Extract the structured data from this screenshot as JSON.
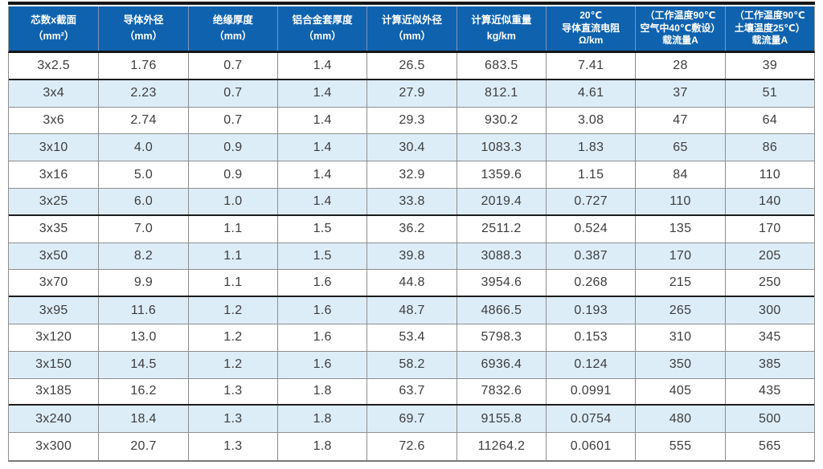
{
  "table": {
    "columns": [
      {
        "id": "cores-section",
        "label_lines": [
          "芯数x截面",
          "（mm²）"
        ]
      },
      {
        "id": "conductor-od",
        "label_lines": [
          "导体外径",
          "（mm）"
        ]
      },
      {
        "id": "insulation-thickness",
        "label_lines": [
          "绝缘厚度",
          "（mm）"
        ]
      },
      {
        "id": "alloy-sheath-thickness",
        "label_lines": [
          "铝合金套厚度",
          "（mm）"
        ]
      },
      {
        "id": "calc-approx-od",
        "label_lines": [
          "计算近似外径",
          "（mm）"
        ]
      },
      {
        "id": "calc-approx-weight",
        "label_lines": [
          "计算近似重量",
          "kg/km"
        ]
      },
      {
        "id": "dc-resistance-20c",
        "label_lines": [
          "20℃",
          "导体直流电阻",
          "Ω/km"
        ]
      },
      {
        "id": "ampacity-air",
        "label_lines": [
          "（工作温度90℃",
          "空气中40℃敷设）",
          "载流量A"
        ]
      },
      {
        "id": "ampacity-soil",
        "label_lines": [
          "（工作温度90℃",
          "土壤温度25℃）",
          "载流量A"
        ]
      }
    ],
    "rows": [
      {
        "cells": [
          "3x2.5",
          "1.76",
          "0.7",
          "1.4",
          "26.5",
          "683.5",
          "7.41",
          "28",
          "39"
        ],
        "thick_bottom": true
      },
      {
        "cells": [
          "3x4",
          "2.23",
          "0.7",
          "1.4",
          "27.9",
          "812.1",
          "4.61",
          "37",
          "51"
        ],
        "thick_bottom": false
      },
      {
        "cells": [
          "3x6",
          "2.74",
          "0.7",
          "1.4",
          "29.3",
          "930.2",
          "3.08",
          "47",
          "64"
        ],
        "thick_bottom": false
      },
      {
        "cells": [
          "3x10",
          "4.0",
          "0.9",
          "1.4",
          "30.4",
          "1083.3",
          "1.83",
          "65",
          "86"
        ],
        "thick_bottom": false
      },
      {
        "cells": [
          "3x16",
          "5.0",
          "0.9",
          "1.4",
          "32.9",
          "1359.6",
          "1.15",
          "84",
          "110"
        ],
        "thick_bottom": false
      },
      {
        "cells": [
          "3x25",
          "6.0",
          "1.0",
          "1.4",
          "33.8",
          "2019.4",
          "0.727",
          "110",
          "140"
        ],
        "thick_bottom": true
      },
      {
        "cells": [
          "3x35",
          "7.0",
          "1.1",
          "1.5",
          "36.2",
          "2511.2",
          "0.524",
          "135",
          "170"
        ],
        "thick_bottom": false
      },
      {
        "cells": [
          "3x50",
          "8.2",
          "1.1",
          "1.5",
          "39.8",
          "3088.3",
          "0.387",
          "170",
          "205"
        ],
        "thick_bottom": false
      },
      {
        "cells": [
          "3x70",
          "9.9",
          "1.1",
          "1.6",
          "44.8",
          "3954.6",
          "0.268",
          "215",
          "250"
        ],
        "thick_bottom": true
      },
      {
        "cells": [
          "3x95",
          "11.6",
          "1.2",
          "1.6",
          "48.7",
          "4866.5",
          "0.193",
          "265",
          "300"
        ],
        "thick_bottom": false
      },
      {
        "cells": [
          "3x120",
          "13.0",
          "1.2",
          "1.6",
          "53.4",
          "5798.3",
          "0.153",
          "310",
          "345"
        ],
        "thick_bottom": false
      },
      {
        "cells": [
          "3x150",
          "14.5",
          "1.2",
          "1.6",
          "58.2",
          "6936.4",
          "0.124",
          "350",
          "385"
        ],
        "thick_bottom": false
      },
      {
        "cells": [
          "3x185",
          "16.2",
          "1.3",
          "1.8",
          "63.7",
          "7832.6",
          "0.0991",
          "405",
          "435"
        ],
        "thick_bottom": true
      },
      {
        "cells": [
          "3x240",
          "18.4",
          "1.3",
          "1.8",
          "69.7",
          "9155.8",
          "0.0754",
          "480",
          "500"
        ],
        "thick_bottom": false
      },
      {
        "cells": [
          "3x300",
          "20.7",
          "1.3",
          "1.8",
          "72.6",
          "11264.2",
          "0.0601",
          "555",
          "565"
        ],
        "thick_bottom": false
      }
    ],
    "colors": {
      "header_bg": "#0f62ae",
      "header_text": "#ffffff",
      "row_bg": "#ffffff",
      "row_alt_bg": "#ddedf8",
      "body_text": "#3d3d3d",
      "grid_line": "#8e8e8e",
      "thick_line": "#1c1c1c"
    }
  }
}
